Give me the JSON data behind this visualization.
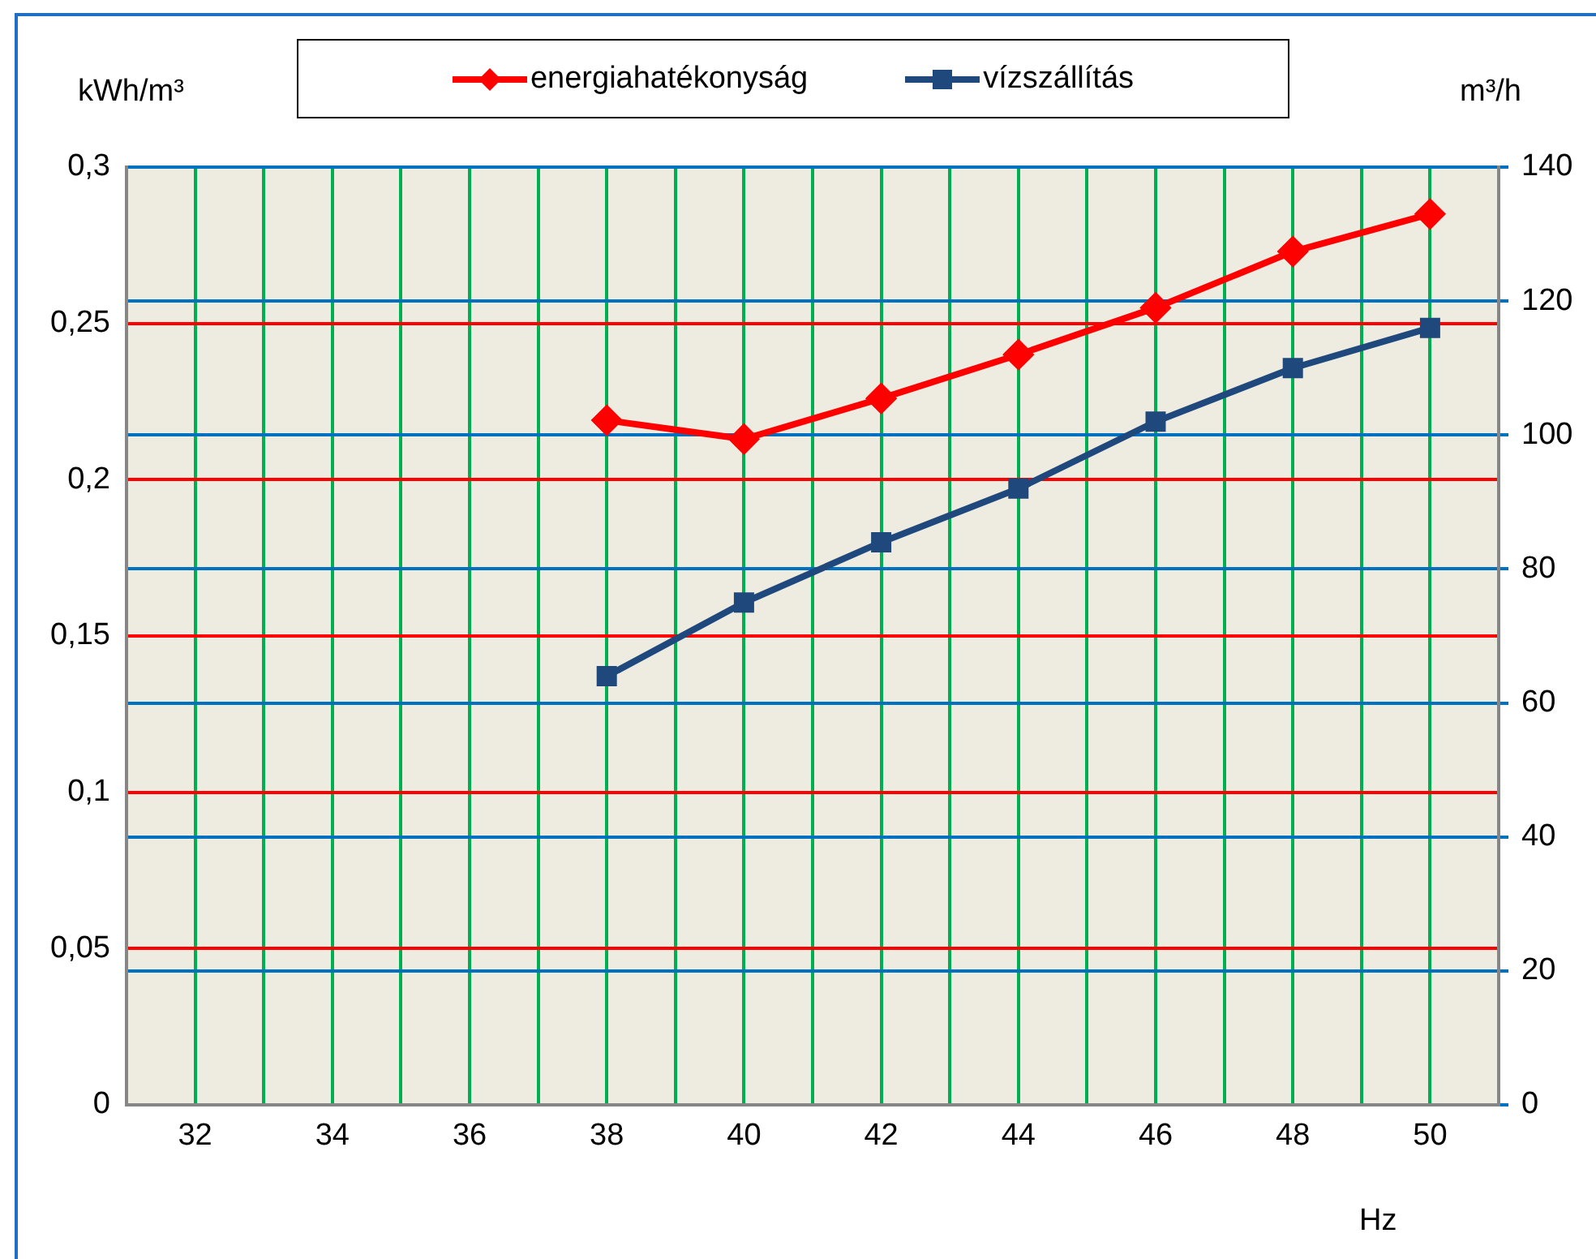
{
  "chart_data": {
    "type": "line",
    "ylabel": "kWh/m³",
    "y2label": "m³/h",
    "xlabel": "Hz",
    "x": [
      38,
      40,
      42,
      44,
      46,
      48,
      50
    ],
    "series": [
      {
        "name": "energiahatékonyság",
        "color": "#ff0000",
        "marker": "diamond",
        "values": [
          0.219,
          0.213,
          0.226,
          0.24,
          0.255,
          0.273,
          0.285
        ]
      },
      {
        "name": "vízszállítás",
        "color": "#1f497d",
        "marker": "square",
        "axis": "y2",
        "values": [
          64,
          75,
          84,
          92,
          102,
          110,
          116
        ]
      }
    ],
    "xlim": [
      31,
      51
    ],
    "xticks": [
      {
        "value": 31,
        "label": null
      },
      32,
      {
        "value": 33,
        "label": null
      },
      34,
      {
        "value": 35,
        "label": null
      },
      36,
      {
        "value": 37,
        "label": null
      },
      38,
      {
        "value": 39,
        "label": null
      },
      40,
      {
        "value": 41,
        "label": null
      },
      42,
      {
        "value": 43,
        "label": null
      },
      44,
      {
        "value": 45,
        "label": null
      },
      46,
      {
        "value": 47,
        "label": null
      },
      48,
      {
        "value": 49,
        "label": null
      },
      50,
      {
        "value": 51,
        "label": null
      }
    ],
    "ylim": [
      0,
      0.3
    ],
    "yticks": [
      0,
      {
        "value": 0.05,
        "label": "0,05"
      },
      {
        "value": 0.1,
        "label": "0,1"
      },
      {
        "value": 0.15,
        "label": "0,15"
      },
      {
        "value": 0.2,
        "label": "0,2"
      },
      {
        "value": 0.25,
        "label": "0,25"
      },
      {
        "value": 0.3,
        "label": "0,3"
      }
    ],
    "y2lim": [
      0,
      140
    ],
    "y2ticks": [
      0,
      20,
      40,
      60,
      80,
      100,
      120,
      140
    ],
    "grid": true,
    "legend": "top",
    "line_style": "solid"
  }
}
